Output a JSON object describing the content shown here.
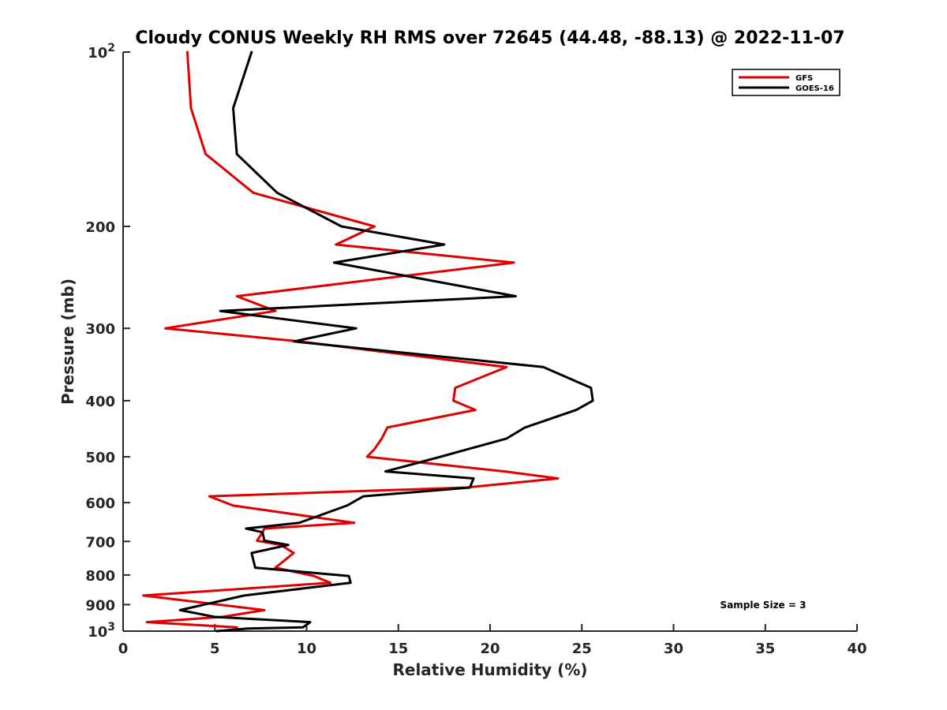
{
  "chart_data": {
    "type": "line",
    "title": "Cloudy CONUS Weekly RH RMS over 72645 (44.48, -88.13) @ 2022-11-07",
    "xlabel": "Relative Humidity (%)",
    "ylabel": "Pressure (mb)",
    "xlim": [
      0,
      40
    ],
    "ylim": [
      100,
      1000
    ],
    "y_scale": "log",
    "y_reversed": true,
    "x_ticks": [
      "0",
      "5",
      "10",
      "15",
      "20",
      "25",
      "30",
      "35",
      "40"
    ],
    "y_ticks": [
      {
        "value": 100,
        "base": "10",
        "exp": "2"
      },
      {
        "value": 200,
        "label": "200"
      },
      {
        "value": 300,
        "label": "300"
      },
      {
        "value": 400,
        "label": "400"
      },
      {
        "value": 500,
        "label": "500"
      },
      {
        "value": 600,
        "label": "600"
      },
      {
        "value": 700,
        "label": "700"
      },
      {
        "value": 800,
        "label": "800"
      },
      {
        "value": 900,
        "label": "900"
      },
      {
        "value": 1000,
        "base": "10",
        "exp": "3"
      }
    ],
    "legend_position": "top-right",
    "grid": false,
    "annotation": "Sample Size = 3",
    "series": [
      {
        "name": "GFS",
        "color": "#e00000",
        "points": [
          [
            3.5,
            100
          ],
          [
            3.7,
            125
          ],
          [
            4.5,
            150
          ],
          [
            7.1,
            175
          ],
          [
            13.7,
            200
          ],
          [
            11.6,
            215
          ],
          [
            21.3,
            231
          ],
          [
            6.2,
            264
          ],
          [
            8.3,
            280
          ],
          [
            2.3,
            300
          ],
          [
            9.6,
            316
          ],
          [
            20.9,
            350
          ],
          [
            18.1,
            380
          ],
          [
            18.0,
            400
          ],
          [
            19.2,
            415
          ],
          [
            14.4,
            445
          ],
          [
            14.1,
            465
          ],
          [
            13.7,
            485
          ],
          [
            13.3,
            500
          ],
          [
            20.8,
            530
          ],
          [
            23.7,
            545
          ],
          [
            18.7,
            565
          ],
          [
            4.7,
            585
          ],
          [
            6.0,
            607
          ],
          [
            12.6,
            650
          ],
          [
            7.7,
            665
          ],
          [
            7.6,
            675
          ],
          [
            7.3,
            698
          ],
          [
            8.6,
            710
          ],
          [
            9.3,
            733
          ],
          [
            8.3,
            777
          ],
          [
            10.4,
            803
          ],
          [
            11.3,
            825
          ],
          [
            1.1,
            868
          ],
          [
            7.7,
            920
          ],
          [
            5.4,
            945
          ],
          [
            1.3,
            965
          ],
          [
            6.2,
            985
          ]
        ]
      },
      {
        "name": "GOES-16",
        "color": "#000000",
        "points": [
          [
            7.0,
            100
          ],
          [
            6.0,
            125
          ],
          [
            6.2,
            150
          ],
          [
            8.4,
            175
          ],
          [
            11.9,
            200
          ],
          [
            17.5,
            215
          ],
          [
            11.5,
            231
          ],
          [
            21.4,
            264
          ],
          [
            5.3,
            280
          ],
          [
            12.7,
            300
          ],
          [
            9.3,
            316
          ],
          [
            22.9,
            350
          ],
          [
            25.5,
            380
          ],
          [
            25.6,
            400
          ],
          [
            24.7,
            415
          ],
          [
            21.9,
            445
          ],
          [
            20.9,
            465
          ],
          [
            18.8,
            485
          ],
          [
            17.3,
            500
          ],
          [
            14.3,
            530
          ],
          [
            19.1,
            545
          ],
          [
            18.9,
            565
          ],
          [
            13.1,
            585
          ],
          [
            12.2,
            607
          ],
          [
            9.6,
            650
          ],
          [
            6.7,
            665
          ],
          [
            7.6,
            675
          ],
          [
            7.7,
            698
          ],
          [
            9.0,
            710
          ],
          [
            7.0,
            733
          ],
          [
            7.2,
            777
          ],
          [
            12.3,
            803
          ],
          [
            12.4,
            825
          ],
          [
            6.6,
            868
          ],
          [
            3.1,
            920
          ],
          [
            5.0,
            945
          ],
          [
            10.2,
            965
          ],
          [
            9.8,
            985
          ],
          [
            6.8,
            990
          ],
          [
            5.1,
            1000
          ]
        ]
      }
    ]
  }
}
